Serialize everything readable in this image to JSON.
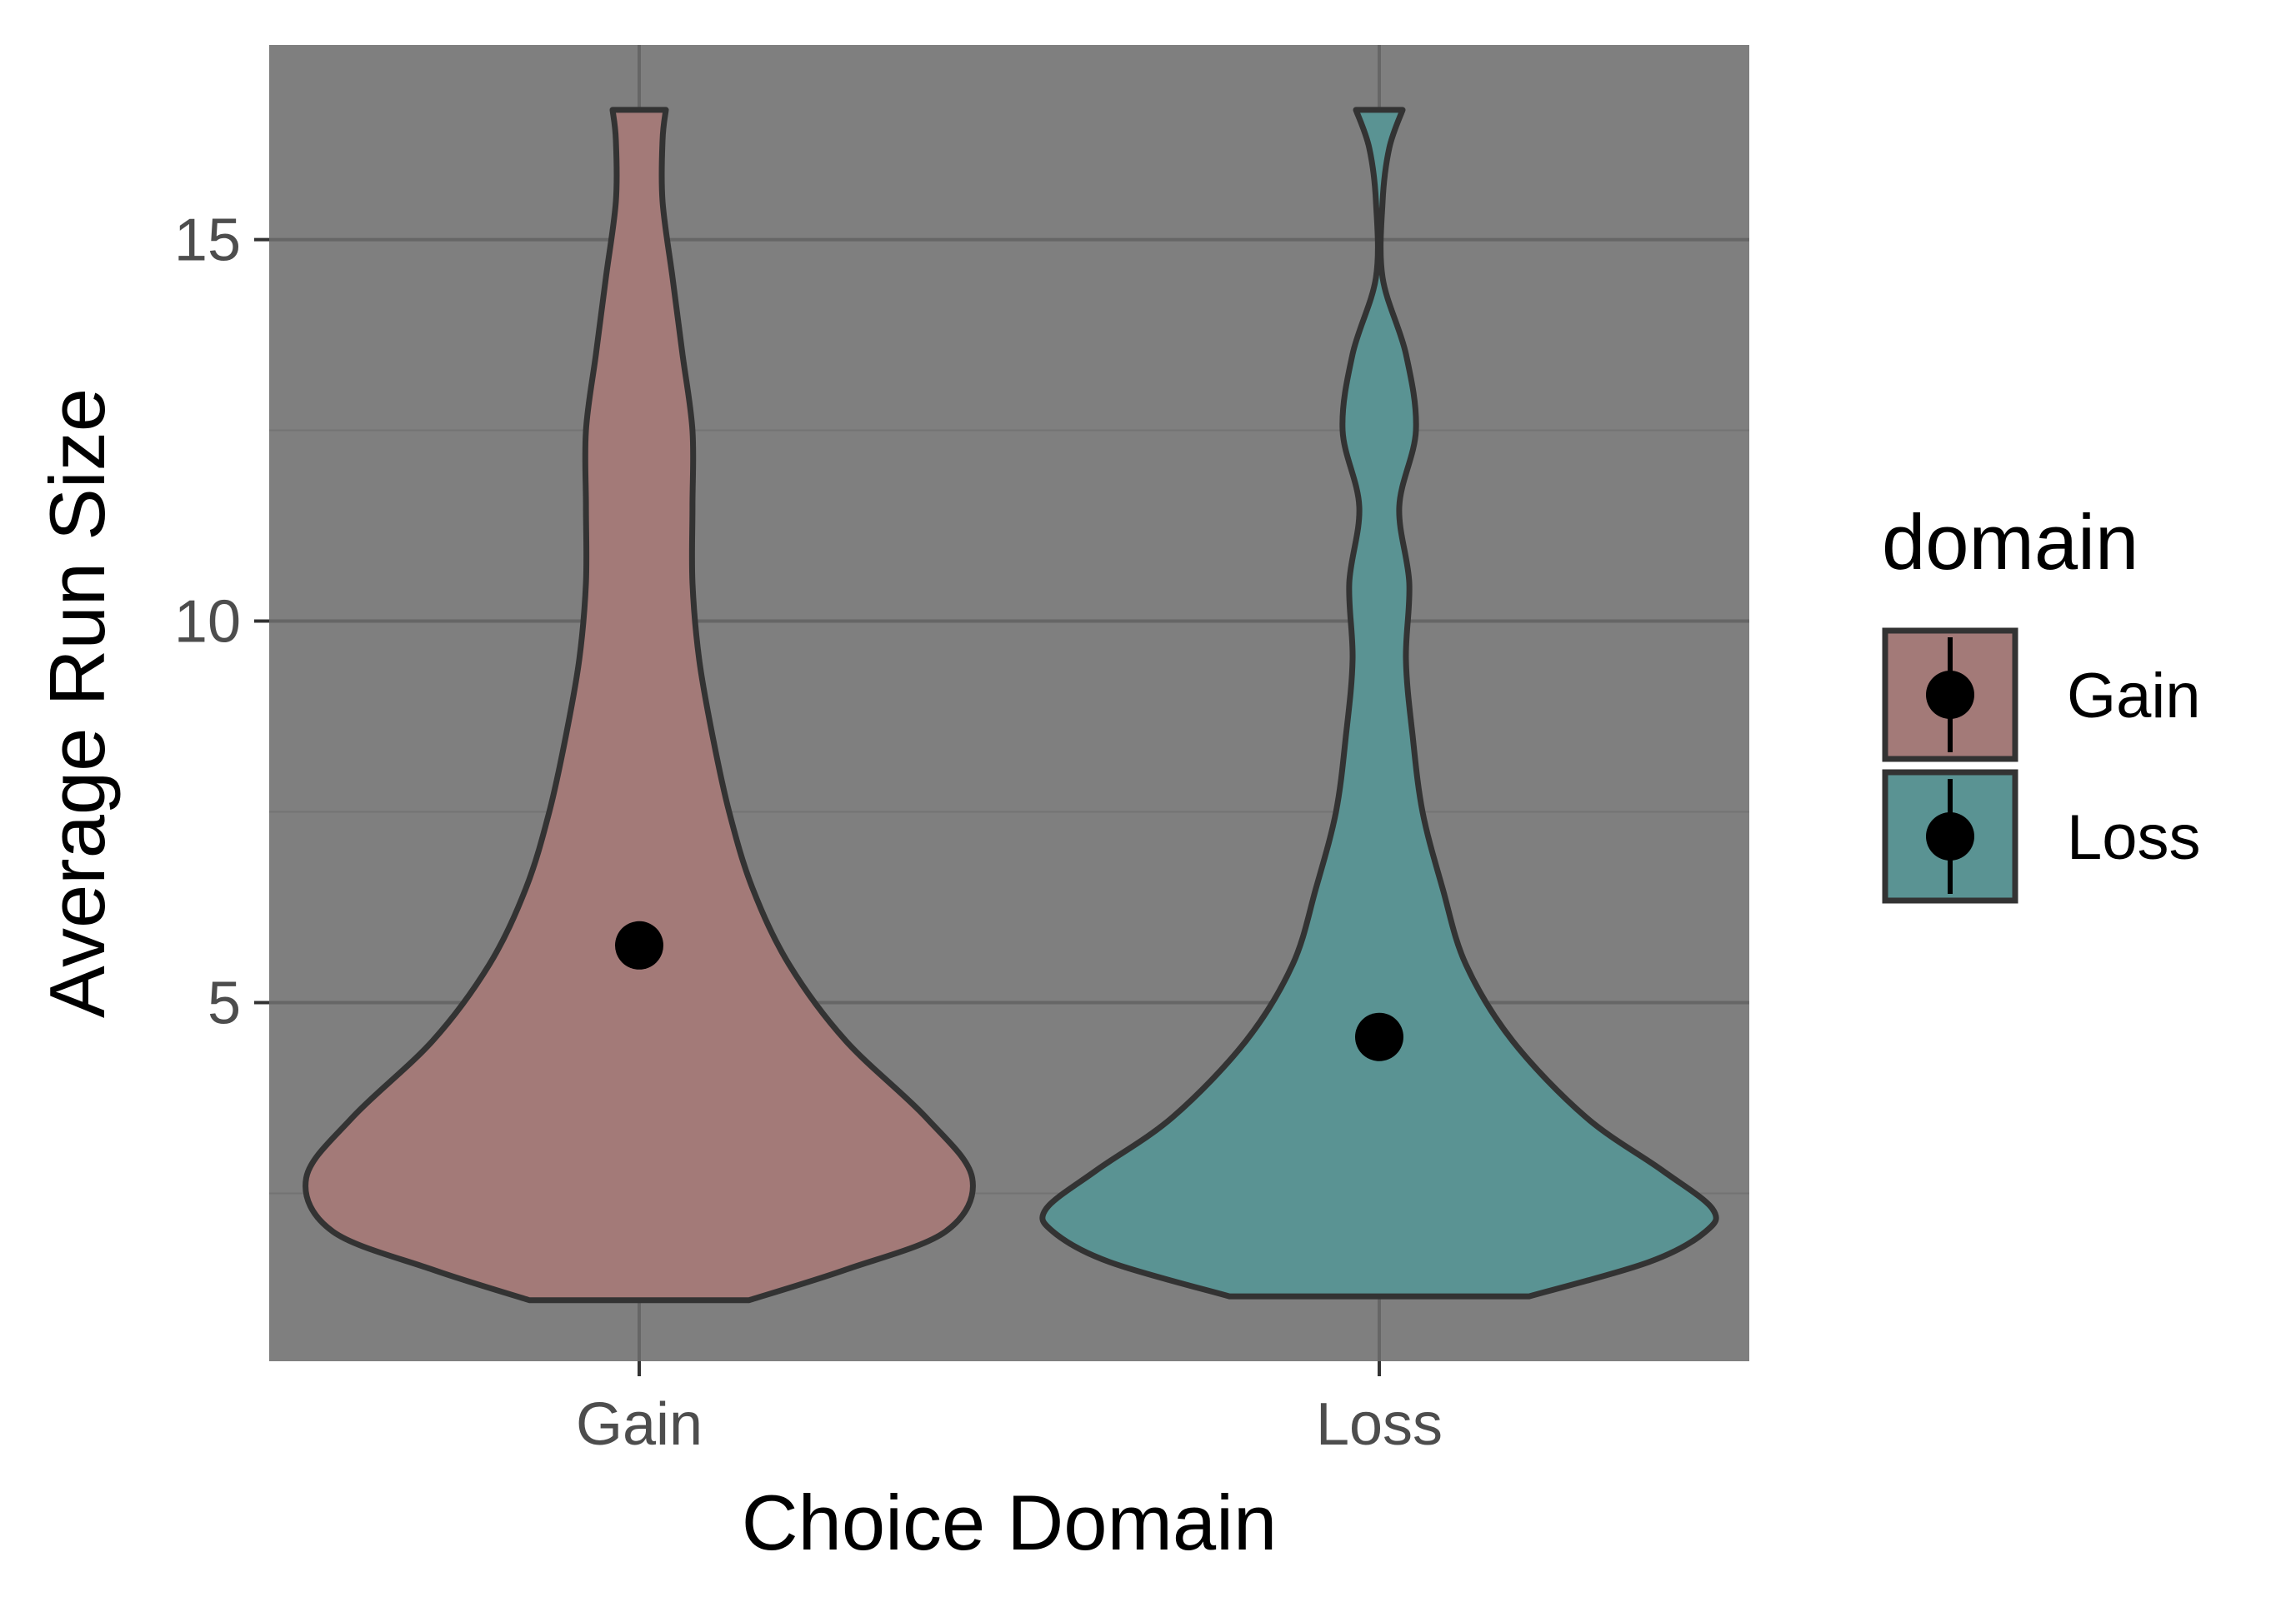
{
  "chart_data": {
    "type": "violin",
    "xlabel": "Choice Domain",
    "ylabel": "Average Run Size",
    "ylim": [
      0.3,
      17.55
    ],
    "yticks": [
      5,
      10,
      15
    ],
    "grid": true,
    "legend": {
      "title": "domain",
      "position": "right",
      "entries": [
        "Gain",
        "Loss"
      ]
    },
    "colors": {
      "panel": "#7f7f7f",
      "grid_major": "#666666",
      "grid_minor": "#737373",
      "outline": "#333333",
      "Gain": "#a37a78",
      "Loss": "#5a9393",
      "mean_point": "#000000"
    },
    "categories": [
      "Gain",
      "Loss"
    ],
    "series": [
      {
        "name": "Gain",
        "mean": 5.75,
        "profile": [
          [
            1.1,
            0.33
          ],
          [
            1.5,
            0.62
          ],
          [
            2.0,
            0.92
          ],
          [
            2.7,
            1.0
          ],
          [
            3.5,
            0.86
          ],
          [
            4.5,
            0.62
          ],
          [
            5.5,
            0.45
          ],
          [
            6.5,
            0.34
          ],
          [
            7.5,
            0.27
          ],
          [
            8.5,
            0.22
          ],
          [
            9.5,
            0.18
          ],
          [
            10.5,
            0.16
          ],
          [
            11.5,
            0.16
          ],
          [
            12.5,
            0.16
          ],
          [
            13.5,
            0.13
          ],
          [
            14.5,
            0.1
          ],
          [
            15.5,
            0.07
          ],
          [
            16.3,
            0.07
          ],
          [
            16.7,
            0.08
          ]
        ]
      },
      {
        "name": "Loss",
        "mean": 4.55,
        "profile": [
          [
            1.15,
            0.45
          ],
          [
            1.6,
            0.81
          ],
          [
            2.0,
            0.98
          ],
          [
            2.3,
            1.0
          ],
          [
            2.8,
            0.85
          ],
          [
            3.5,
            0.62
          ],
          [
            4.5,
            0.4
          ],
          [
            5.5,
            0.26
          ],
          [
            6.5,
            0.19
          ],
          [
            7.5,
            0.13
          ],
          [
            8.5,
            0.1
          ],
          [
            9.5,
            0.08
          ],
          [
            10.5,
            0.09
          ],
          [
            11.5,
            0.06
          ],
          [
            12.5,
            0.11
          ],
          [
            13.5,
            0.08
          ],
          [
            14.5,
            0.01
          ],
          [
            15.5,
            0.01
          ],
          [
            16.2,
            0.03
          ],
          [
            16.7,
            0.07
          ]
        ]
      }
    ]
  }
}
